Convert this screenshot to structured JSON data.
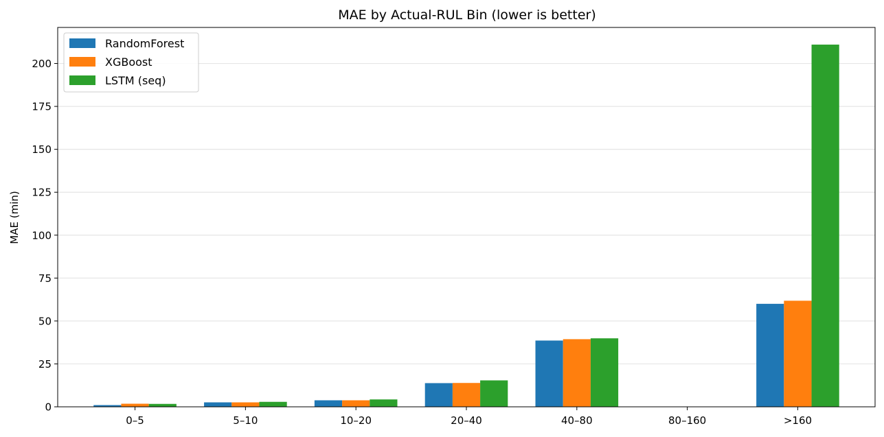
{
  "chart_data": {
    "type": "bar",
    "title": "MAE by Actual-RUL Bin (lower is better)",
    "xlabel": "",
    "ylabel": "MAE (min)",
    "categories": [
      "0–5",
      "5–10",
      "10–20",
      "20–40",
      "40–80",
      "80–160",
      ">160"
    ],
    "series": [
      {
        "name": "RandomForest",
        "color": "#1f77b4",
        "values": [
          1.0,
          2.6,
          3.8,
          13.8,
          38.6,
          null,
          60.0
        ]
      },
      {
        "name": "XGBoost",
        "color": "#ff7f0e",
        "values": [
          1.8,
          2.6,
          3.8,
          13.9,
          39.4,
          null,
          61.8
        ]
      },
      {
        "name": "LSTM (seq)",
        "color": "#2ca02c",
        "values": [
          1.7,
          2.9,
          4.3,
          15.4,
          39.9,
          null,
          211.0
        ]
      }
    ],
    "ylim": [
      0,
      221
    ],
    "yticks": [
      0,
      25,
      50,
      75,
      100,
      125,
      150,
      175,
      200
    ],
    "grid": "y",
    "legend": "upper-left"
  }
}
